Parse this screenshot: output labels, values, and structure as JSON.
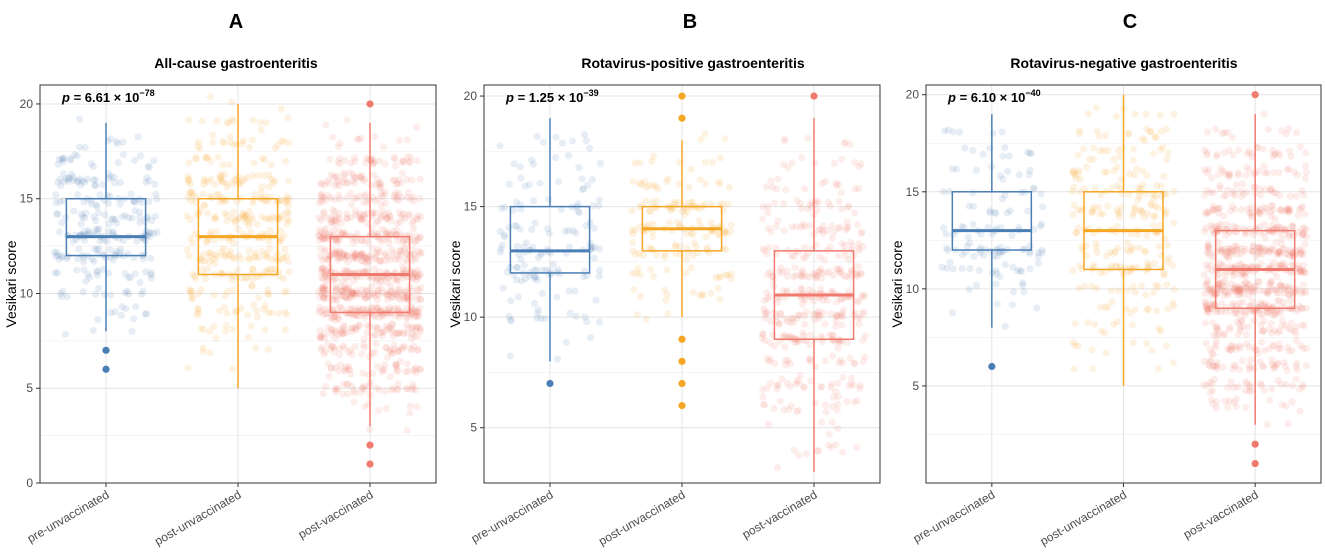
{
  "chart_data": [
    {
      "type": "box",
      "panel": "A",
      "title": "All-cause gastroenteritis",
      "ylabel": "Vesikari score",
      "xlabel": "",
      "ylim": [
        0,
        21
      ],
      "yticks": [
        0,
        5,
        10,
        15,
        20
      ],
      "grid": true,
      "legend": "none",
      "p_value": {
        "prefix": "p",
        "text": " = 6.61 × 10",
        "exponent": "−78"
      },
      "categories": [
        "pre-unvaccinated",
        "post-unvaccinated",
        "post-vaccinated"
      ],
      "series": [
        {
          "category": "pre-unvaccinated",
          "color": "#4a7fb5",
          "min": 8,
          "q1": 12,
          "median": 13,
          "q3": 15,
          "max": 19,
          "outliers": [
            7,
            6
          ],
          "n_points": 260
        },
        {
          "category": "post-unvaccinated",
          "color": "#f5a623",
          "min": 5,
          "q1": 11,
          "median": 13,
          "q3": 15,
          "max": 20,
          "outliers": [],
          "n_points": 360
        },
        {
          "category": "post-vaccinated",
          "color": "#f07a6e",
          "min": 3,
          "q1": 9,
          "median": 11,
          "q3": 13,
          "max": 19,
          "outliers": [
            20,
            2,
            1
          ],
          "n_points": 950
        }
      ]
    },
    {
      "type": "box",
      "panel": "B",
      "title": "Rotavirus-positive gastroenteritis",
      "ylabel": "Vesikari score",
      "xlabel": "",
      "ylim": [
        2.5,
        20.5
      ],
      "yticks": [
        5,
        10,
        15,
        20
      ],
      "grid": true,
      "legend": "none",
      "p_value": {
        "prefix": "p",
        "text": " = 1.25 × 10",
        "exponent": "−39"
      },
      "categories": [
        "pre-unvaccinated",
        "post-unvaccinated",
        "post-vaccinated"
      ],
      "series": [
        {
          "category": "pre-unvaccinated",
          "color": "#4a7fb5",
          "min": 8,
          "q1": 12,
          "median": 13,
          "q3": 15,
          "max": 19,
          "outliers": [
            7
          ],
          "n_points": 150
        },
        {
          "category": "post-unvaccinated",
          "color": "#f5a623",
          "min": 10,
          "q1": 13,
          "median": 14,
          "q3": 15,
          "max": 18,
          "outliers": [
            20,
            19,
            9,
            8,
            7,
            6
          ],
          "n_points": 170
        },
        {
          "category": "post-vaccinated",
          "color": "#f07a6e",
          "min": 3,
          "q1": 9,
          "median": 11,
          "q3": 13,
          "max": 19,
          "outliers": [
            20
          ],
          "n_points": 420
        }
      ]
    },
    {
      "type": "box",
      "panel": "C",
      "title": "Rotavirus-negative gastroenteritis",
      "ylabel": "Vesikari score",
      "xlabel": "",
      "ylim": [
        0,
        20.5
      ],
      "yticks": [
        5,
        10,
        15,
        20
      ],
      "grid": true,
      "legend": "none",
      "p_value": {
        "prefix": "p",
        "text": " = 6.10 × 10",
        "exponent": "−40"
      },
      "categories": [
        "pre-unvaccinated",
        "post-unvaccinated",
        "post-vaccinated"
      ],
      "series": [
        {
          "category": "pre-unvaccinated",
          "color": "#4a7fb5",
          "min": 8,
          "q1": 12,
          "median": 13,
          "q3": 15,
          "max": 19,
          "outliers": [
            6
          ],
          "n_points": 130
        },
        {
          "category": "post-unvaccinated",
          "color": "#f5a623",
          "min": 5,
          "q1": 11,
          "median": 13,
          "q3": 15,
          "max": 20,
          "outliers": [],
          "n_points": 260
        },
        {
          "category": "post-vaccinated",
          "color": "#f07a6e",
          "min": 3,
          "q1": 9,
          "median": 11,
          "q3": 13,
          "max": 19,
          "outliers": [
            20,
            2,
            1
          ],
          "n_points": 800
        }
      ]
    }
  ]
}
